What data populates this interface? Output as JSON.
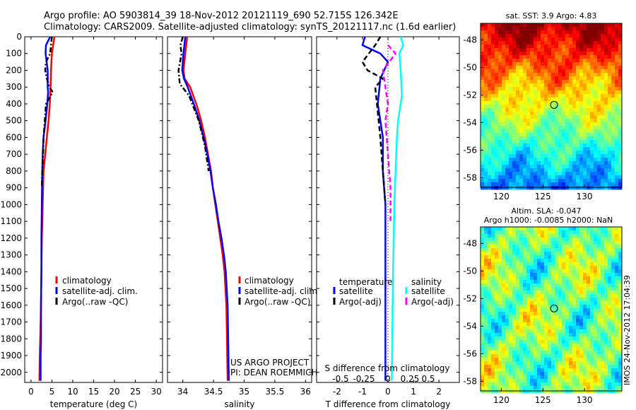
{
  "header": {
    "line1": "Argo profile: AO 5903814_39 18-Nov-2012 20121119_690 52.715S 126.342E",
    "line2": "Climatology: CARS2009. Satellite-adjusted climatology: synTS_20121117.nc (1.6d earlier)"
  },
  "side_text": "IMOS 24-Nov-2012 17:04:39",
  "chart_data": [
    {
      "type": "line",
      "name": "temperature-profile",
      "xlabel": "temperature (deg C)",
      "xlim": [
        -1.5,
        31.5
      ],
      "xticks": [
        0,
        5,
        10,
        15,
        20,
        25,
        30
      ],
      "ylim": [
        2060,
        0
      ],
      "yticks": [
        0,
        100,
        200,
        300,
        400,
        500,
        600,
        700,
        800,
        900,
        1000,
        1100,
        1200,
        1300,
        1400,
        1500,
        1600,
        1700,
        1800,
        1900,
        2000
      ],
      "legend": {
        "position": "lower-center",
        "entries": [
          "climatology",
          "satellite-adj. clim.",
          "Argo(..raw -QC)"
        ]
      },
      "series": [
        {
          "name": "climatology",
          "color": "#ff0000",
          "style": "solid",
          "x": [
            5.6,
            5.3,
            5.0,
            4.8,
            4.7,
            4.6,
            4.5,
            4.2,
            3.8,
            3.4,
            3.0,
            2.8,
            2.6,
            2.5,
            2.4,
            2.3,
            2.2,
            2.1,
            2.0
          ],
          "y": [
            0,
            50,
            100,
            200,
            300,
            350,
            400,
            500,
            600,
            700,
            800,
            1000,
            1200,
            1400,
            1600,
            1700,
            1800,
            1900,
            2050
          ]
        },
        {
          "name": "satellite-adj. clim.",
          "color": "#0000ff",
          "style": "solid",
          "x": [
            4.6,
            3.6,
            3.5,
            4.0,
            4.0,
            4.1,
            3.9,
            3.5,
            3.0,
            2.8,
            2.7,
            2.6,
            2.5,
            2.5,
            2.4,
            2.4,
            2.3,
            2.3
          ],
          "y": [
            0,
            50,
            100,
            200,
            300,
            330,
            400,
            500,
            600,
            700,
            800,
            1000,
            1200,
            1400,
            1600,
            1800,
            1900,
            2050
          ]
        },
        {
          "name": "Argo(..raw -QC)",
          "color": "#000000",
          "style": "dashdot",
          "x": [
            5.0,
            4.8,
            4.6,
            3.6,
            3.4,
            3.8,
            4.4,
            5.2,
            3.6,
            3.3,
            3.0,
            2.9,
            2.7,
            2.6
          ],
          "y": [
            0,
            50,
            100,
            150,
            200,
            250,
            300,
            330,
            400,
            500,
            600,
            700,
            800,
            900
          ]
        }
      ]
    },
    {
      "type": "line",
      "name": "salinity-profile",
      "xlabel": "salinity",
      "xlim": [
        33.75,
        36.1
      ],
      "xticks": [
        34,
        34.5,
        35,
        35.5,
        36
      ],
      "ylim": [
        2060,
        0
      ],
      "legend": {
        "position": "lower-center",
        "entries": [
          "climatology",
          "satellite-adj. clim.",
          "Argo(..raw -QC)"
        ]
      },
      "annotations": [
        "US ARGO PROJECT",
        "PI: DEAN ROEMMICH"
      ],
      "series": [
        {
          "name": "climatology",
          "color": "#ff0000",
          "style": "solid",
          "x": [
            34.07,
            34.04,
            34.01,
            34.03,
            34.12,
            34.22,
            34.3,
            34.36,
            34.41,
            34.46,
            34.49,
            34.53,
            34.57,
            34.61,
            34.65,
            34.68,
            34.71,
            34.72,
            34.73
          ],
          "y": [
            0,
            100,
            200,
            250,
            300,
            400,
            500,
            600,
            700,
            800,
            900,
            1000,
            1100,
            1200,
            1300,
            1400,
            1600,
            1800,
            2050
          ]
        },
        {
          "name": "satellite-adj. clim.",
          "color": "#0000ff",
          "style": "solid",
          "x": [
            34.04,
            34.01,
            33.99,
            34.02,
            34.08,
            34.18,
            34.27,
            34.34,
            34.4,
            34.45,
            34.49,
            34.54,
            34.58,
            34.63,
            34.67,
            34.7,
            34.73,
            34.74,
            34.75
          ],
          "y": [
            0,
            100,
            200,
            250,
            300,
            400,
            500,
            600,
            700,
            800,
            900,
            1000,
            1100,
            1200,
            1300,
            1400,
            1600,
            1800,
            2050
          ]
        },
        {
          "name": "Argo(..raw -QC)",
          "color": "#000000",
          "style": "dashdot",
          "x": [
            34.0,
            33.96,
            33.98,
            33.93,
            33.95,
            34.1,
            34.26,
            34.36,
            34.42
          ],
          "y": [
            0,
            50,
            100,
            200,
            280,
            350,
            500,
            650,
            800
          ]
        }
      ]
    },
    {
      "type": "line",
      "name": "difference-profile",
      "xlabel": "T difference from climatology",
      "xlabel2": "S difference from climatology",
      "xlim": [
        -2.8,
        2.8
      ],
      "xticks": [
        -2,
        -1,
        0,
        1,
        2
      ],
      "xticks2": [
        "-0.5",
        "-0.25",
        "0",
        "0.25",
        "0.5"
      ],
      "ylim": [
        2060,
        0
      ],
      "legend": {
        "position": "lower-center",
        "headers": [
          "temperature",
          "salinity"
        ],
        "entries": [
          "satellite",
          "Argo(-adj)",
          "satellite",
          "Argo(-adj)"
        ]
      },
      "series": [
        {
          "name": "satellite",
          "group": "temperature",
          "color": "#0000ff",
          "style": "solid",
          "x": [
            -0.9,
            -1.0,
            -0.3,
            0.0,
            -0.3,
            -0.4,
            -0.3,
            -0.2,
            -0.2,
            -0.2,
            -0.1,
            -0.1,
            -0.1,
            -0.1,
            -0.1
          ],
          "y": [
            0,
            50,
            100,
            150,
            250,
            400,
            500,
            600,
            700,
            800,
            1000,
            1200,
            1500,
            1800,
            2050
          ]
        },
        {
          "name": "Argo(-adj)",
          "group": "temperature",
          "color": "#000000",
          "style": "dashed",
          "x": [
            -0.3,
            -0.5,
            -1.0,
            -0.8,
            -0.2,
            -0.5,
            -0.4,
            -0.3,
            -0.2,
            -0.1
          ],
          "y": [
            0,
            50,
            150,
            200,
            250,
            300,
            450,
            600,
            800,
            1000
          ]
        },
        {
          "name": "satellite",
          "group": "salinity",
          "color": "#00ffff",
          "style": "solid",
          "x": [
            0.5,
            0.6,
            0.45,
            0.5,
            0.55,
            0.4,
            0.35,
            0.3,
            0.25,
            0.2,
            0.15
          ],
          "y": [
            0,
            50,
            100,
            200,
            350,
            500,
            600,
            800,
            1000,
            1400,
            2050
          ]
        },
        {
          "name": "Argo(-adj)",
          "group": "salinity",
          "color": "#ff00ff",
          "style": "dashed",
          "x": [
            0.0,
            0.3,
            -0.2,
            -0.1,
            0.0,
            -0.1,
            0.0,
            0.1,
            0.1
          ],
          "y": [
            50,
            100,
            200,
            300,
            400,
            500,
            700,
            900,
            1100
          ]
        }
      ]
    },
    {
      "type": "heatmap",
      "name": "sst-map",
      "title": "sat. SST: 3.9 Argo: 4.83",
      "xlim": [
        117.5,
        134.5
      ],
      "ylim": [
        -58.7,
        -46.8
      ],
      "xticks": [
        120,
        125,
        130
      ],
      "yticks": [
        -48,
        -50,
        -52,
        -54,
        -56,
        -58
      ],
      "marker": {
        "lon": 126.342,
        "lat": -52.715
      }
    },
    {
      "type": "heatmap",
      "name": "sla-map",
      "title": "Altim. SLA: -0.047",
      "subtitle": "Argo h1000: -0.0085 h2000: NaN",
      "xlim": [
        117.5,
        134.5
      ],
      "ylim": [
        -58.7,
        -46.8
      ],
      "xticks": [
        120,
        125,
        130
      ],
      "yticks": [
        -48,
        -50,
        -52,
        -54,
        -56,
        -58
      ],
      "marker": {
        "lon": 126.342,
        "lat": -52.715
      }
    }
  ]
}
